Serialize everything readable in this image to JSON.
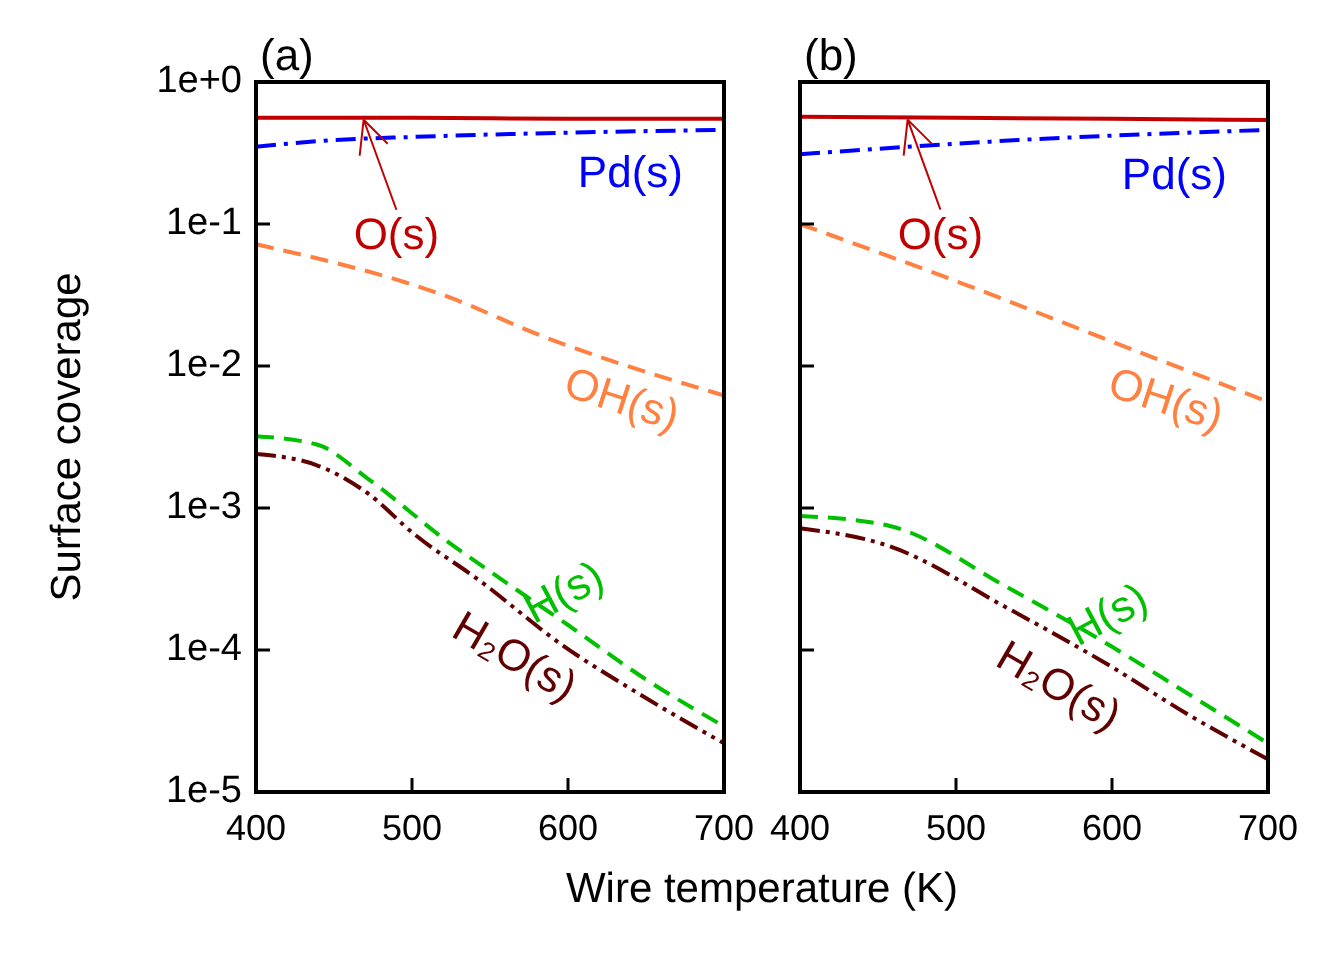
{
  "chart_data": [
    {
      "type": "line",
      "title": "(a)",
      "xlabel": "Wire temperature (K)",
      "ylabel": "Surface coverage",
      "log": "y",
      "xlim": [
        400,
        700
      ],
      "ylim": [
        1e-05,
        1
      ],
      "xticks": [
        400,
        500,
        600,
        700
      ],
      "yticks": [
        {
          "value": 1,
          "label": "1e+0"
        },
        {
          "value": 0.1,
          "label": "1e-1"
        },
        {
          "value": 0.01,
          "label": "1e-2"
        },
        {
          "value": 0.001,
          "label": "1e-3"
        },
        {
          "value": 0.0001,
          "label": "1e-4"
        },
        {
          "value": 1e-05,
          "label": "1e-5"
        }
      ],
      "grid": false,
      "series": [
        {
          "name": "O(s)",
          "color": "#c00000",
          "line_style": "solid",
          "x": [
            400,
            500,
            600,
            700
          ],
          "values": [
            0.56,
            0.56,
            0.55,
            0.55
          ]
        },
        {
          "name": "Pd(s)",
          "color": "#0000ff",
          "line_style": "dashdot",
          "x": [
            400,
            450,
            500,
            600,
            700
          ],
          "values": [
            0.35,
            0.39,
            0.41,
            0.44,
            0.46
          ]
        },
        {
          "name": "OH(s)",
          "color": "#ff8040",
          "line_style": "dashed",
          "x": [
            400,
            522,
            585,
            700
          ],
          "values": [
            0.072,
            0.031,
            0.016,
            0.0062
          ]
        },
        {
          "name": "H(s)",
          "color": "#00c000",
          "line_style": "dashed",
          "x": [
            400,
            439,
            472,
            522,
            564,
            600,
            650,
            700
          ],
          "values": [
            0.0032,
            0.0028,
            0.0016,
            0.00059,
            0.00028,
            0.00015,
            6.2e-05,
            2.9e-05
          ]
        },
        {
          "name": "H₂O(s)",
          "color": "#600000",
          "line_style": "dashdotdot",
          "x": [
            400,
            439,
            472,
            501,
            543,
            597,
            647,
            700
          ],
          "values": [
            0.0024,
            0.002,
            0.00126,
            0.00066,
            0.00031,
            0.000107,
            4.8e-05,
            2.2e-05
          ]
        }
      ]
    },
    {
      "type": "line",
      "title": "(b)",
      "log": "y",
      "xlim": [
        400,
        700
      ],
      "ylim": [
        1e-05,
        1
      ],
      "xticks": [
        400,
        500,
        600,
        700
      ],
      "yticks": [
        {
          "value": 1,
          "label": null
        },
        {
          "value": 0.1,
          "label": null
        },
        {
          "value": 0.01,
          "label": null
        },
        {
          "value": 0.001,
          "label": null
        },
        {
          "value": 0.0001,
          "label": null
        },
        {
          "value": 1e-05,
          "label": null
        }
      ],
      "tick_labels": "x",
      "grid": false,
      "series": [
        {
          "name": "O(s)",
          "color": "#c00000",
          "line_style": "solid",
          "x": [
            400,
            500,
            600,
            700
          ],
          "values": [
            0.57,
            0.56,
            0.55,
            0.54
          ]
        },
        {
          "name": "Pd(s)",
          "color": "#0000ff",
          "line_style": "dashdot",
          "x": [
            400,
            540,
            700
          ],
          "values": [
            0.31,
            0.39,
            0.46
          ]
        },
        {
          "name": "OH(s)",
          "color": "#ff8040",
          "line_style": "dashed",
          "x": [
            400,
            499,
            599,
            700
          ],
          "values": [
            0.1,
            0.04,
            0.015,
            0.0056
          ]
        },
        {
          "name": "H(s)",
          "color": "#00c000",
          "line_style": "dashed",
          "x": [
            400,
            457,
            532,
            599,
            649,
            700
          ],
          "values": [
            0.00088,
            0.00075,
            0.00028,
            0.000107,
            4.9e-05,
            2.2e-05
          ]
        },
        {
          "name": "H₂O(s)",
          "color": "#600000",
          "line_style": "dashdotdot",
          "x": [
            400,
            457,
            532,
            599,
            649,
            700
          ],
          "values": [
            0.00072,
            0.00054,
            0.0002,
            7.7e-05,
            3.5e-05,
            1.7e-05
          ]
        }
      ]
    }
  ]
}
